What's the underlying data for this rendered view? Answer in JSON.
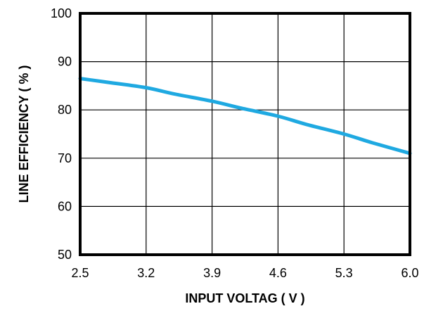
{
  "chart_data": {
    "type": "line",
    "xlabel": "INPUT VOLTAG ( V )",
    "ylabel": "LINE EFFICIENCY ( % )",
    "xlim": [
      2.5,
      6.0
    ],
    "ylim": [
      50,
      100
    ],
    "x_ticks": [
      "2.5",
      "3.2",
      "3.9",
      "4.6",
      "5.3",
      "6.0"
    ],
    "y_ticks": [
      "50",
      "60",
      "70",
      "80",
      "90",
      "100"
    ],
    "grid": true,
    "legend": "none",
    "series": [
      {
        "color": "#1fa9e1",
        "x": [
          2.5,
          2.8,
          3.2,
          3.5,
          3.9,
          4.2,
          4.6,
          4.9,
          5.3,
          5.6,
          6.0
        ],
        "y": [
          86.5,
          85.7,
          84.6,
          83.3,
          81.8,
          80.4,
          78.7,
          77.0,
          75.0,
          73.2,
          71.0
        ]
      }
    ]
  }
}
